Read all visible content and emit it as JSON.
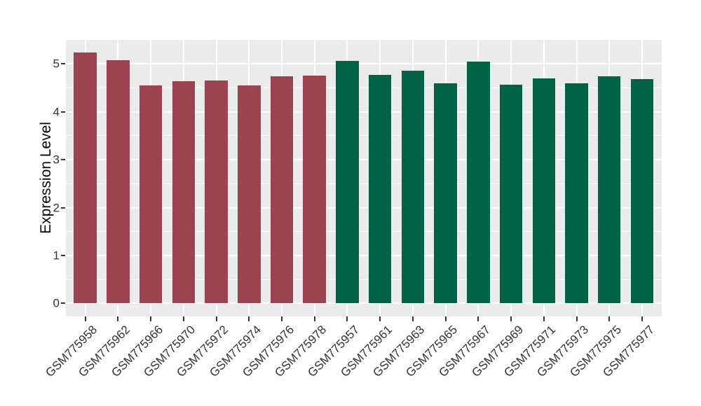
{
  "chart_data": {
    "type": "bar",
    "title": "",
    "xlabel": "",
    "ylabel": "Expression Level",
    "categories": [
      "GSM775958",
      "GSM775962",
      "GSM775966",
      "GSM775970",
      "GSM775972",
      "GSM775974",
      "GSM775976",
      "GSM775978",
      "GSM775957",
      "GSM775961",
      "GSM775963",
      "GSM775965",
      "GSM775967",
      "GSM775969",
      "GSM775971",
      "GSM775973",
      "GSM775975",
      "GSM775977"
    ],
    "values": [
      5.24,
      5.08,
      4.55,
      4.64,
      4.65,
      4.55,
      4.74,
      4.76,
      5.07,
      4.77,
      4.86,
      4.6,
      5.05,
      4.56,
      4.7,
      4.6,
      4.74,
      4.68
    ],
    "bar_groups": [
      "group1",
      "group1",
      "group1",
      "group1",
      "group1",
      "group1",
      "group1",
      "group1",
      "group2",
      "group2",
      "group2",
      "group2",
      "group2",
      "group2",
      "group2",
      "group2",
      "group2",
      "group2"
    ],
    "group_colors": {
      "group1": "#9B4350",
      "group2": "#026446"
    },
    "y_tick_labels": [
      "0",
      "1",
      "2",
      "3",
      "4",
      "5"
    ],
    "y_tick_values": [
      0,
      1,
      2,
      3,
      4,
      5
    ],
    "y_minor_values": [
      0.5,
      1.5,
      2.5,
      3.5,
      4.5
    ],
    "ylim": [
      -0.28,
      5.49
    ],
    "grid": "major-and-minor-white-on-gray",
    "legend_position": "none",
    "panel_background": "#EBEBEB",
    "gridline_color": "#FFFFFF",
    "axis_text_color": "#333333",
    "axis_title_color": "#000000"
  }
}
